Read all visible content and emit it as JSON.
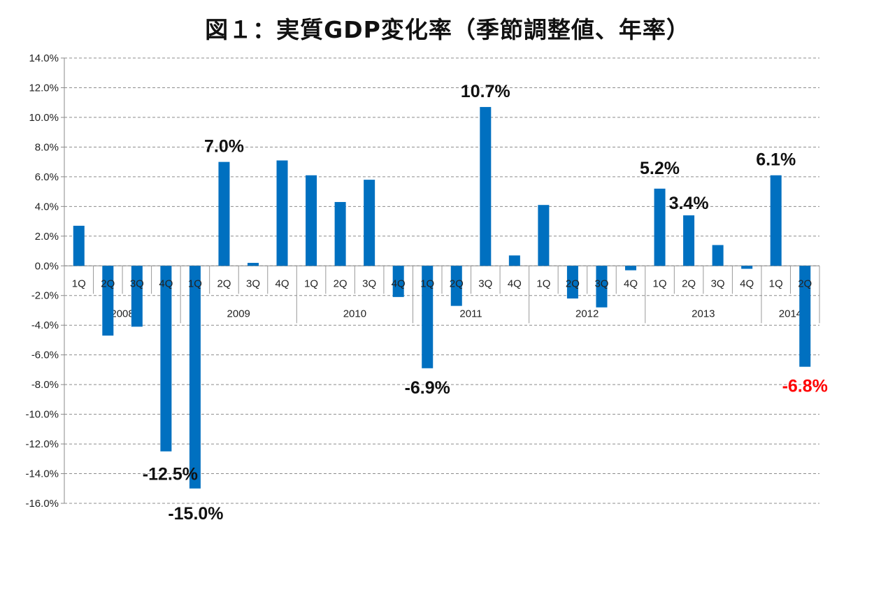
{
  "chart_data": {
    "type": "bar",
    "title": "図１：実質GDP変化率（季節調整値、年率）",
    "xlabel": "",
    "ylabel": "",
    "ylim": [
      -16,
      14
    ],
    "ytick_step": 2,
    "grid": true,
    "bar_color": "#0070C0",
    "highlight_color": "#FF0000",
    "years": [
      {
        "label": "2008",
        "quarters": [
          "1Q",
          "2Q",
          "3Q",
          "4Q"
        ]
      },
      {
        "label": "2009",
        "quarters": [
          "1Q",
          "2Q",
          "3Q",
          "4Q"
        ]
      },
      {
        "label": "2010",
        "quarters": [
          "1Q",
          "2Q",
          "3Q",
          "4Q"
        ]
      },
      {
        "label": "2011",
        "quarters": [
          "1Q",
          "2Q",
          "3Q",
          "4Q"
        ]
      },
      {
        "label": "2012",
        "quarters": [
          "1Q",
          "2Q",
          "3Q",
          "4Q"
        ]
      },
      {
        "label": "2013",
        "quarters": [
          "1Q",
          "2Q",
          "3Q",
          "4Q"
        ]
      },
      {
        "label": "2014",
        "quarters": [
          "1Q",
          "2Q"
        ]
      }
    ],
    "series": [
      {
        "name": "実質GDP変化率",
        "values": [
          2.7,
          -4.7,
          -4.1,
          -12.5,
          -15.0,
          7.0,
          0.2,
          7.1,
          6.1,
          4.3,
          5.8,
          -2.1,
          -6.9,
          -2.7,
          10.7,
          0.7,
          4.1,
          -2.2,
          -2.8,
          -0.3,
          5.2,
          3.4,
          1.4,
          -0.2,
          6.1,
          -6.8
        ]
      }
    ],
    "annotations": [
      {
        "index": 3,
        "text": "-12.5%",
        "highlight": false
      },
      {
        "index": 4,
        "text": "-15.0%",
        "highlight": false
      },
      {
        "index": 5,
        "text": "7.0%",
        "highlight": false
      },
      {
        "index": 12,
        "text": "-6.9%",
        "highlight": false
      },
      {
        "index": 14,
        "text": "10.7%",
        "highlight": false
      },
      {
        "index": 20,
        "text": "5.2%",
        "highlight": false
      },
      {
        "index": 21,
        "text": "3.4%",
        "highlight": false
      },
      {
        "index": 24,
        "text": "6.1%",
        "highlight": false
      },
      {
        "index": 25,
        "text": "-6.8%",
        "highlight": true
      }
    ]
  }
}
